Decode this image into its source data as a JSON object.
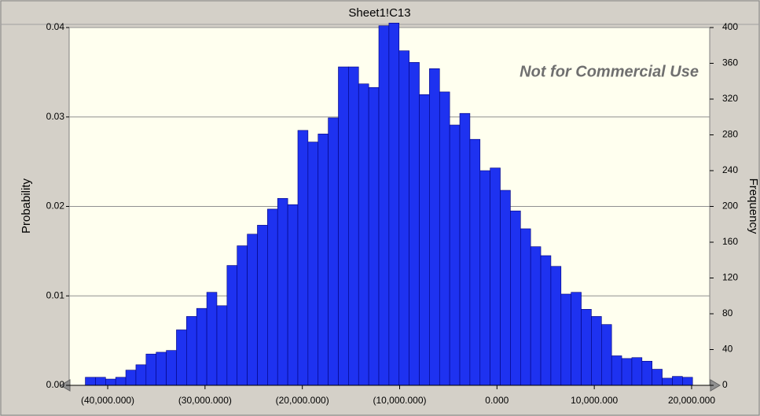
{
  "chart_data": {
    "type": "histogram",
    "title": "Sheet1!C13",
    "ylabel": "Probability",
    "y2label": "Frequency",
    "annotation": "Not for Commercial Use",
    "color": "#1e32f0",
    "edgecolor": "#00007a",
    "grid": true,
    "bins": [
      -42300000,
      -41260000,
      -40220000,
      -39180000,
      -38140000,
      -37100000,
      -36060000,
      -35020000,
      -33980000,
      -32940000,
      -31900000,
      -30860000,
      -29820000,
      -28780000,
      -27740000,
      -26700000,
      -25660000,
      -24620000,
      -23580000,
      -22540000,
      -21500000,
      -20460000,
      -19420000,
      -18380000,
      -17340000,
      -16300000,
      -15260000,
      -14220000,
      -13180000,
      -12140000,
      -11100000,
      -10060000,
      -9020000,
      -7980000,
      -6940000,
      -5900000,
      -4860000,
      -3820000,
      -2780000,
      -1740000,
      -700000,
      340000,
      1380000,
      2420000,
      3460000,
      4500000,
      5540000,
      6580000,
      7620000,
      8660000,
      9700000,
      10740000,
      11780000,
      12820000,
      13860000,
      14900000,
      15940000,
      16980000,
      18020000,
      19060000,
      20100000
    ],
    "values": [
      9,
      9,
      7,
      9,
      17,
      23,
      35,
      37,
      39,
      62,
      77,
      86,
      104,
      89,
      134,
      156,
      169,
      179,
      197,
      209,
      202,
      285,
      272,
      281,
      299,
      356,
      356,
      337,
      333,
      402,
      405,
      374,
      361,
      325,
      354,
      328,
      291,
      304,
      275,
      240,
      243,
      218,
      195,
      175,
      155,
      145,
      133,
      102,
      104,
      85,
      77,
      68,
      33,
      30,
      31,
      27,
      18,
      8,
      10,
      9
    ],
    "xlim": [
      -43960000,
      21860000
    ],
    "xticks": [
      {
        "value": -40000000,
        "label": "(40,000.000)"
      },
      {
        "value": -30000000,
        "label": "(30,000.000)"
      },
      {
        "value": -20000000,
        "label": "(20,000.000)"
      },
      {
        "value": -10000000,
        "label": "(10,000.000)"
      },
      {
        "value": 0,
        "label": "0.000"
      },
      {
        "value": 10000000,
        "label": "10,000.000"
      },
      {
        "value": 20000000,
        "label": "20,000.000"
      }
    ],
    "ylim": [
      0,
      0.04
    ],
    "yticks": [
      {
        "value": 0,
        "label": "0.00"
      },
      0.01,
      0.02,
      0.03,
      0.04
    ],
    "y2lim": [
      0,
      400
    ],
    "y2ticks": [
      0,
      40,
      80,
      120,
      160,
      200,
      240,
      280,
      320,
      360,
      400
    ]
  }
}
